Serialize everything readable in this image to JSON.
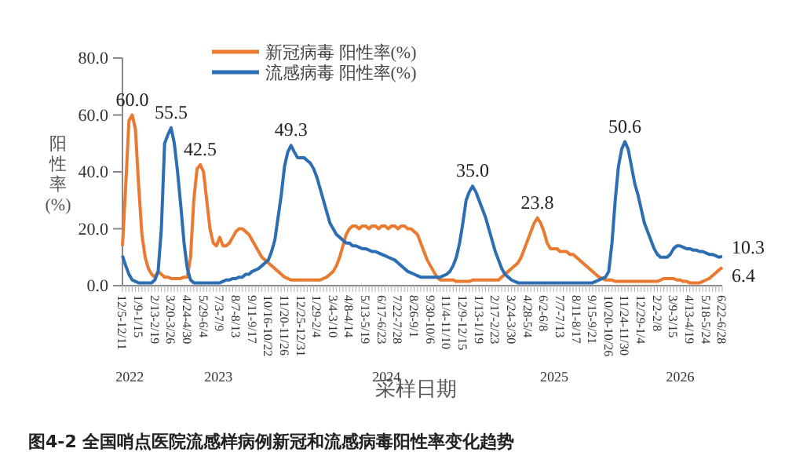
{
  "chart_data": {
    "type": "line",
    "title": "图4-2 全国哨点医院流感样病例新冠和流感病毒阳性率变化趋势",
    "xlabel": "采样日期",
    "ylabel": "阳性率(%)",
    "categories": [
      "12/5-12/11",
      null,
      null,
      null,
      null,
      "1/9-1/15",
      null,
      null,
      null,
      null,
      "2/13-2/19",
      null,
      null,
      null,
      null,
      "3/20-3/26",
      null,
      null,
      null,
      null,
      "4/24-4/30",
      null,
      null,
      null,
      null,
      "5/29-6/4",
      null,
      null,
      null,
      null,
      "7/3-7/9",
      null,
      null,
      null,
      null,
      "8/7-8/13",
      null,
      null,
      null,
      null,
      "9/11-9/17",
      null,
      null,
      null,
      null,
      "10/16-10/22",
      null,
      null,
      null,
      null,
      "11/20-11/26",
      null,
      null,
      null,
      null,
      "12/25-12/31",
      null,
      null,
      null,
      null,
      "1/29-2/4",
      null,
      null,
      null,
      null,
      "3/4-3/10",
      null,
      null,
      null,
      null,
      "4/8-4/14",
      null,
      null,
      null,
      null,
      "5/13-5/19",
      null,
      null,
      null,
      null,
      "6/17-6/23",
      null,
      null,
      null,
      null,
      "7/22-7/28",
      null,
      null,
      null,
      null,
      "8/26-9/1",
      null,
      null,
      null,
      null,
      "9/30-10/6",
      null,
      null,
      null,
      null,
      "11/4-11/10",
      null,
      null,
      null,
      null,
      "12/9-12/15",
      null,
      null,
      null,
      null,
      "1/13-1/19",
      null,
      null,
      null,
      null,
      "2/17-2/23",
      null,
      null,
      null,
      null,
      "3/24-3/30",
      null,
      null,
      null,
      null,
      "4/28-5/4",
      null,
      null,
      null,
      null,
      "6/2-6/8",
      null,
      null,
      null,
      null,
      "7/7-7/13",
      null,
      null,
      null,
      null,
      "8/11-8/17",
      null,
      null,
      null,
      null,
      "9/15-9/21",
      null,
      null,
      null,
      null,
      "10/20-10/26",
      null,
      null,
      null,
      null,
      "11/24-11/30",
      null,
      null,
      null,
      null,
      "12/29-1/4",
      null,
      null,
      null,
      null,
      "2/2-2/8",
      null,
      null,
      null,
      null,
      "3/9-3/15",
      null,
      null,
      null,
      null,
      "4/13-4/19",
      null,
      null,
      null,
      null,
      "5/18-5/24",
      null,
      null,
      null,
      null,
      "6/22-6/28"
    ],
    "series": [
      {
        "name": "新冠病毒 阳性率(%)",
        "color": "#e97a2f",
        "values": [
          14,
          35,
          58,
          60,
          55,
          35,
          18,
          10,
          6,
          4,
          3,
          5,
          4,
          3,
          3,
          2.5,
          2.5,
          2.5,
          2.5,
          3,
          3,
          10,
          30,
          41,
          42.5,
          40,
          30,
          20,
          15,
          14,
          17,
          14,
          14,
          15,
          17,
          19,
          20,
          20,
          19,
          18,
          16,
          14,
          12,
          10,
          9,
          8,
          7,
          6,
          5,
          4,
          3,
          2.5,
          2,
          2,
          2,
          2,
          2,
          2,
          2,
          2,
          2,
          2,
          2.5,
          3,
          4,
          5,
          7,
          10,
          14,
          18,
          20,
          21,
          21,
          20,
          21,
          21,
          20,
          21,
          21,
          20,
          21,
          21,
          20,
          21,
          21,
          20,
          21,
          21,
          20,
          20,
          19,
          18,
          15,
          12,
          9,
          7,
          5,
          3,
          2,
          2,
          2,
          2,
          2,
          1.5,
          1.5,
          1.5,
          1.5,
          1.5,
          2,
          2,
          2,
          2,
          2,
          2,
          2,
          2,
          2,
          3,
          4,
          5,
          6,
          7,
          8,
          10,
          13,
          16,
          19,
          22,
          23.8,
          22,
          19,
          15,
          13,
          13,
          13,
          12,
          12,
          12,
          11,
          11,
          10,
          9,
          8,
          7,
          6,
          5,
          4,
          3,
          2.5,
          2,
          2,
          2,
          1.5,
          1.5,
          1.5,
          1.5,
          1.5,
          1.5,
          1.5,
          1.5,
          1.5,
          1.5,
          1.5,
          1.5,
          1.5,
          1.5,
          2,
          2.5,
          2.5,
          2.5,
          2.5,
          2,
          2,
          1.5,
          1.5,
          1,
          1,
          1,
          1,
          1.5,
          2,
          2.5,
          3.5,
          4.5,
          5.5,
          6.4
        ],
        "value_labels": [
          null,
          null,
          null,
          "60.0",
          null,
          null,
          null,
          null,
          null,
          null,
          null,
          null,
          null,
          null,
          null,
          null,
          null,
          null,
          null,
          null,
          null,
          null,
          null,
          null,
          "42.5",
          null,
          null,
          null,
          null,
          null,
          null,
          null,
          null,
          null,
          null,
          null,
          null,
          null,
          null,
          null,
          null,
          null,
          null,
          null,
          null,
          null,
          null,
          null,
          null,
          null,
          null,
          null,
          null,
          null,
          null,
          null,
          null,
          null,
          null,
          null,
          null,
          null,
          null,
          null,
          null,
          null,
          null,
          null,
          null,
          null,
          null,
          null,
          null,
          null,
          null,
          null,
          null,
          null,
          null,
          null,
          null,
          null,
          null,
          null,
          null,
          null,
          null,
          null,
          null,
          null,
          null,
          null,
          null,
          null,
          null,
          null,
          null,
          null,
          null,
          null,
          null,
          null,
          null,
          null,
          null,
          null,
          null,
          null,
          null,
          null,
          null,
          null,
          null,
          null,
          null,
          null,
          null,
          null,
          null,
          null,
          null,
          null,
          null,
          null,
          null,
          null,
          null,
          null,
          "23.8",
          null,
          null,
          null,
          null,
          null,
          null,
          null,
          null,
          null,
          null,
          null,
          null,
          null,
          null,
          null,
          null,
          null,
          null,
          null,
          null,
          null,
          null,
          null,
          null,
          null,
          null,
          null,
          null,
          null,
          null,
          null,
          null,
          null,
          null,
          null,
          null,
          null,
          null,
          null,
          null,
          null,
          null,
          null,
          null,
          null,
          null,
          null,
          null,
          null,
          null,
          null,
          null,
          null,
          null,
          null,
          null,
          "6.4"
        ]
      },
      {
        "name": "流感病毒 阳性率(%)",
        "color": "#2c6db3",
        "values": [
          10.5,
          7,
          4,
          2,
          1.5,
          1,
          1,
          1,
          1,
          1,
          2,
          5,
          20,
          50,
          53,
          55.5,
          50,
          40,
          28,
          15,
          6,
          2,
          1,
          1,
          1,
          1,
          1,
          1,
          1,
          1,
          1,
          1.5,
          2,
          2,
          2.5,
          2.5,
          3,
          3,
          4,
          4,
          5,
          5.5,
          6,
          7,
          8,
          9,
          12,
          16,
          24,
          32,
          42,
          47,
          49.3,
          47,
          45,
          45,
          45,
          44,
          43,
          41,
          38,
          34,
          30,
          26,
          22,
          20,
          18,
          17,
          16,
          15,
          15,
          14,
          14,
          13.5,
          13,
          13,
          12.5,
          12,
          12,
          11.5,
          11,
          10.5,
          10,
          9.5,
          9,
          8,
          7,
          6,
          5,
          4.5,
          4,
          3.5,
          3,
          3,
          3,
          3,
          3,
          3,
          3,
          3.5,
          4,
          5,
          7,
          10,
          15,
          22,
          30,
          33,
          35,
          33,
          30,
          27,
          24,
          20,
          16,
          12,
          9,
          6,
          4,
          3,
          2,
          1.5,
          1,
          1,
          1,
          1,
          1,
          1,
          1,
          1,
          1,
          1,
          1,
          1,
          1,
          1,
          1,
          1,
          1,
          1,
          1,
          1,
          1,
          1,
          1,
          1,
          1.5,
          2,
          2.5,
          3,
          5,
          15,
          30,
          42,
          48,
          50.6,
          48,
          42,
          36,
          32,
          27,
          22,
          19,
          16,
          13,
          11,
          10,
          10,
          10,
          11,
          13,
          14,
          14,
          13.5,
          13,
          13,
          12.5,
          12.5,
          12,
          12,
          11.5,
          11,
          11,
          10.5,
          10,
          10.3
        ],
        "value_labels": [
          null,
          null,
          null,
          null,
          null,
          null,
          null,
          null,
          null,
          null,
          null,
          null,
          null,
          null,
          null,
          "55.5",
          null,
          null,
          null,
          null,
          null,
          null,
          null,
          null,
          null,
          null,
          null,
          null,
          null,
          null,
          null,
          null,
          null,
          null,
          null,
          null,
          null,
          null,
          null,
          null,
          null,
          null,
          null,
          null,
          null,
          null,
          null,
          null,
          null,
          null,
          null,
          null,
          "49.3",
          null,
          null,
          null,
          null,
          null,
          null,
          null,
          null,
          null,
          null,
          null,
          null,
          null,
          null,
          null,
          null,
          null,
          null,
          null,
          null,
          null,
          null,
          null,
          null,
          null,
          null,
          null,
          null,
          null,
          null,
          null,
          null,
          null,
          null,
          null,
          null,
          null,
          null,
          null,
          null,
          null,
          null,
          null,
          null,
          null,
          null,
          null,
          null,
          null,
          null,
          null,
          null,
          null,
          null,
          null,
          "35.0",
          null,
          null,
          null,
          null,
          null,
          null,
          null,
          null,
          null,
          null,
          null,
          null,
          null,
          null,
          null,
          null,
          null,
          null,
          null,
          null,
          null,
          null,
          null,
          null,
          null,
          null,
          null,
          null,
          null,
          null,
          null,
          null,
          null,
          null,
          null,
          null,
          null,
          null,
          null,
          null,
          null,
          null,
          null,
          null,
          null,
          null,
          "50.6",
          null,
          null,
          null,
          null,
          null,
          null,
          null,
          null,
          null,
          null,
          null,
          null,
          null,
          null,
          null,
          null,
          null,
          null,
          null,
          null,
          null,
          null,
          null,
          null,
          null,
          null,
          null,
          null,
          null,
          "10.3"
        ]
      }
    ],
    "ylim": [
      0,
      80
    ],
    "yticks": [
      {
        "value": 0,
        "label": "0.0"
      },
      {
        "value": 20,
        "label": "20.0"
      },
      {
        "value": 40,
        "label": "40.0"
      },
      {
        "value": 60,
        "label": "60.0"
      },
      {
        "value": 80,
        "label": "80.0"
      }
    ],
    "annotations": [
      "2022",
      "2023",
      "2024",
      "2025",
      "2026"
    ],
    "legend": "top",
    "grid": false,
    "marker": "none",
    "line_style": "solid"
  }
}
